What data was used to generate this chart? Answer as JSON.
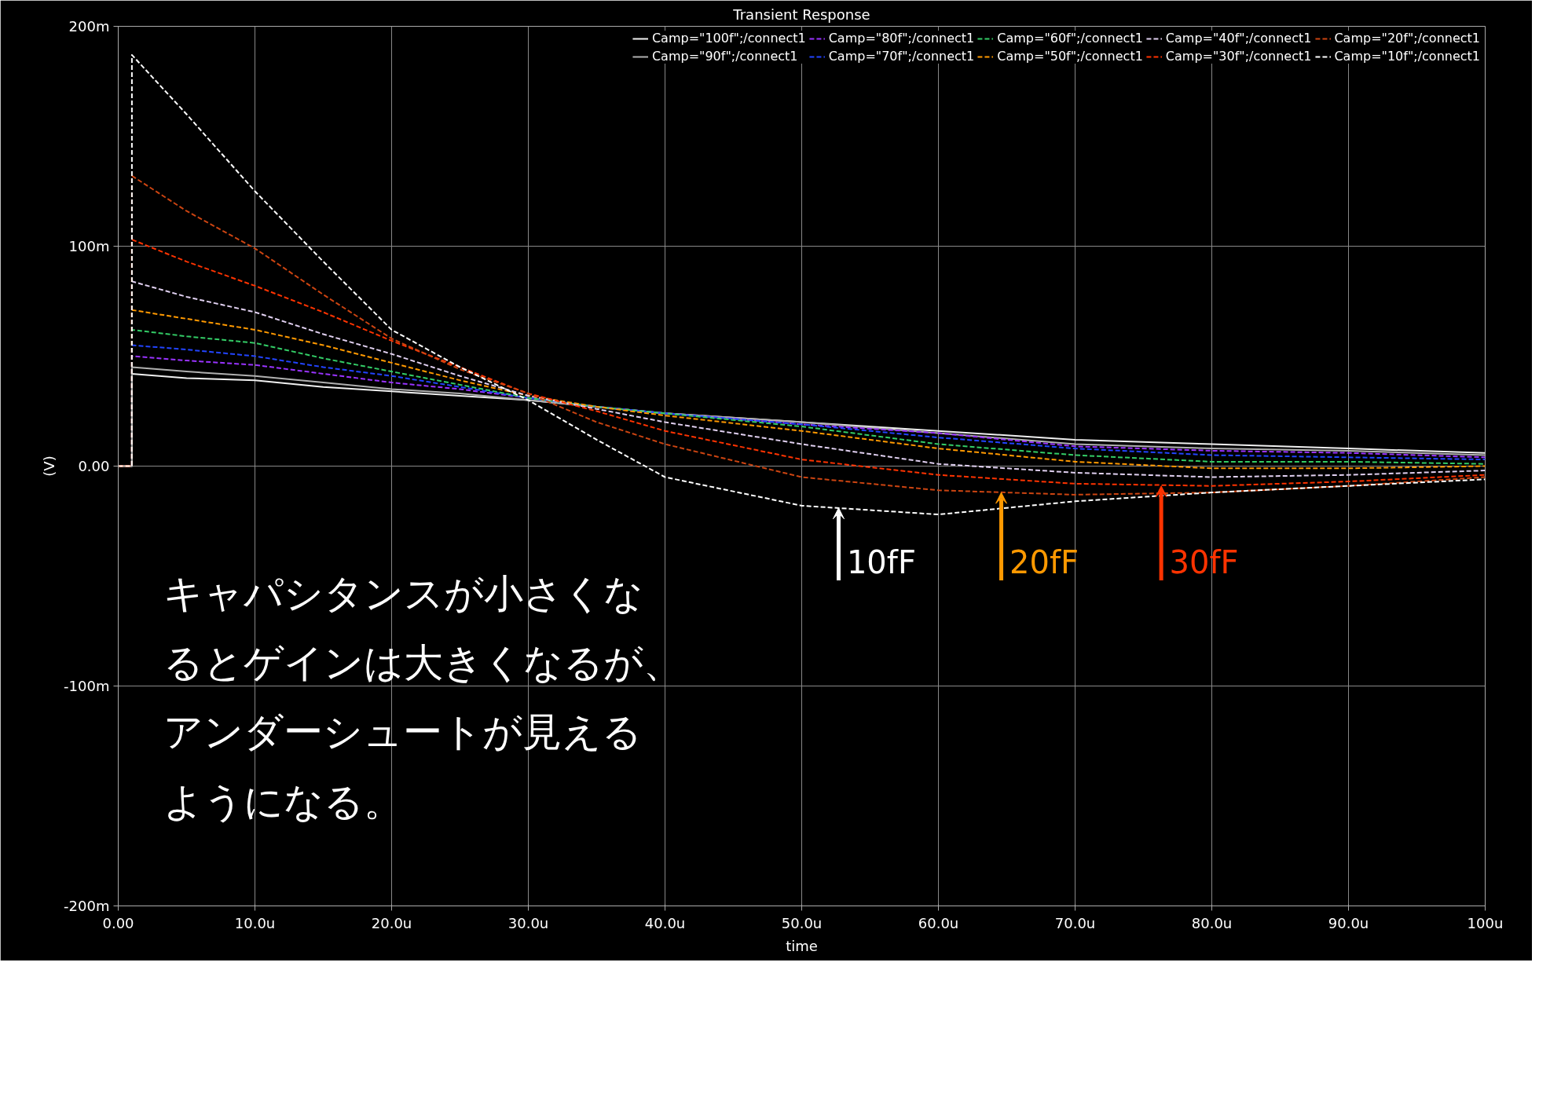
{
  "chart_data": {
    "type": "line",
    "title": "Transient Response",
    "xlabel": "time",
    "ylabel": "(V)",
    "x": [
      0,
      1,
      1,
      5,
      10,
      15,
      20,
      25,
      30,
      35,
      40,
      50,
      60,
      70,
      80,
      90,
      100
    ],
    "series": [
      {
        "name": "Camp=\"100f\";/connect1",
        "color": "#f0f0f0",
        "line_style": "solid",
        "values": [
          0,
          0,
          42,
          40,
          39,
          36,
          34,
          32,
          30,
          27,
          24,
          20,
          16,
          12,
          10,
          8,
          6
        ]
      },
      {
        "name": "Camp=\"90f\";/connect1",
        "color": "#b0b0b0",
        "line_style": "solid",
        "values": [
          0,
          0,
          45,
          43,
          41,
          38,
          35,
          33,
          30,
          27,
          24,
          20,
          15,
          10,
          8,
          7,
          5
        ]
      },
      {
        "name": "Camp=\"80f\";/connect1",
        "color": "#9933ff",
        "line_style": "dashed",
        "values": [
          0,
          0,
          50,
          48,
          46,
          42,
          38,
          35,
          31,
          27,
          24,
          19,
          15,
          9,
          7,
          6,
          4
        ]
      },
      {
        "name": "Camp=\"70f\";/connect1",
        "color": "#2244ff",
        "line_style": "dashed",
        "values": [
          0,
          0,
          55,
          53,
          50,
          45,
          41,
          36,
          31,
          27,
          24,
          19,
          13,
          8,
          5,
          4,
          3
        ]
      },
      {
        "name": "Camp=\"60f\";/connect1",
        "color": "#33cc66",
        "line_style": "dashed",
        "values": [
          0,
          0,
          62,
          59,
          56,
          49,
          43,
          37,
          31,
          27,
          24,
          18,
          10,
          5,
          2,
          2,
          1
        ]
      },
      {
        "name": "Camp=\"50f\";/connect1",
        "color": "#ff9900",
        "line_style": "dashed",
        "values": [
          0,
          0,
          71,
          67,
          62,
          55,
          47,
          39,
          32,
          27,
          23,
          16,
          8,
          2,
          -1,
          -1,
          0
        ]
      },
      {
        "name": "Camp=\"40f\";/connect1",
        "color": "#e0d0f0",
        "line_style": "dashed",
        "values": [
          0,
          0,
          84,
          77,
          70,
          60,
          51,
          41,
          32,
          26,
          20,
          10,
          1,
          -3,
          -5,
          -4,
          -2
        ]
      },
      {
        "name": "Camp=\"30f\";/connect1",
        "color": "#ff3300",
        "line_style": "dashed",
        "values": [
          0,
          0,
          103,
          93,
          82,
          70,
          57,
          45,
          33,
          25,
          16,
          3,
          -4,
          -8,
          -9,
          -7,
          -4
        ]
      },
      {
        "name": "Camp=\"20f\";/connect1",
        "color": "#cc4411",
        "line_style": "dashed",
        "values": [
          0,
          0,
          132,
          116,
          99,
          78,
          58,
          44,
          33,
          20,
          10,
          -5,
          -11,
          -13,
          -12,
          -9,
          -5
        ]
      },
      {
        "name": "Camp=\"10f\";/connect1",
        "color": "#ffffff",
        "line_style": "dashed",
        "values": [
          0,
          0,
          187,
          160,
          125,
          93,
          62,
          45,
          30,
          12,
          -5,
          -18,
          -22,
          -16,
          -12,
          -9,
          -6
        ]
      }
    ],
    "xlim": [
      0,
      100
    ],
    "xticks": [
      {
        "value": 0,
        "label": "0.00"
      },
      {
        "value": 10,
        "label": "10.0u"
      },
      {
        "value": 20,
        "label": "20.0u"
      },
      {
        "value": 30,
        "label": "30.0u"
      },
      {
        "value": 40,
        "label": "40.0u"
      },
      {
        "value": 50,
        "label": "50.0u"
      },
      {
        "value": 60,
        "label": "60.0u"
      },
      {
        "value": 70,
        "label": "70.0u"
      },
      {
        "value": 80,
        "label": "80.0u"
      },
      {
        "value": 90,
        "label": "90.0u"
      },
      {
        "value": 100,
        "label": "100u"
      }
    ],
    "ylim": [
      -200,
      200
    ],
    "yticks": [
      {
        "value": -200,
        "label": "-200m"
      },
      {
        "value": -100,
        "label": "-100m"
      },
      {
        "value": 0,
        "label": "0.00"
      },
      {
        "value": 100,
        "label": "100m"
      },
      {
        "value": 200,
        "label": "200m"
      }
    ],
    "grid": true,
    "legend": "top",
    "annotations": [
      {
        "text": "10fF",
        "x": 52.7,
        "y": -19
      },
      {
        "text": "20fF",
        "x": 64.6,
        "y": -12
      },
      {
        "text": "30fF",
        "x": 76.3,
        "y": -9
      },
      "キャパシタンスが小さくなるとゲインは大きくなるが、アンダーシュートが見えるようになる。"
    ]
  }
}
